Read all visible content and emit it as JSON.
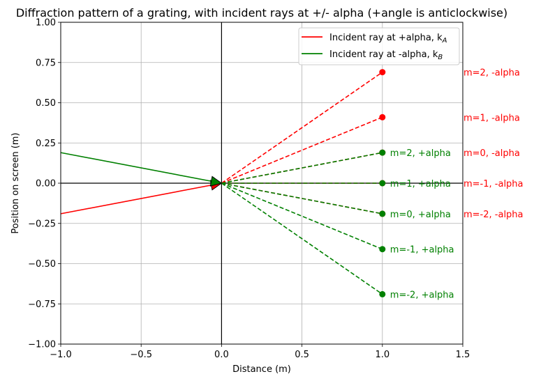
{
  "chart_data": {
    "type": "line",
    "title": "Diffraction pattern of a grating, with incident rays at +/- alpha (+angle is anticlockwise)",
    "xlabel": "Distance (m)",
    "ylabel": "Position on screen (m)",
    "xlim": [
      -1.0,
      1.5
    ],
    "ylim": [
      -1.0,
      1.0
    ],
    "xticks": [
      "−1.0",
      "−0.5",
      "0.0",
      "0.5",
      "1.0",
      "1.5"
    ],
    "xtick_values": [
      -1.0,
      -0.5,
      0.0,
      0.5,
      1.0,
      1.5
    ],
    "yticks": [
      "−1.00",
      "−0.75",
      "−0.50",
      "−0.25",
      "0.00",
      "0.25",
      "0.50",
      "0.75",
      "1.00"
    ],
    "ytick_values": [
      -1.0,
      -0.75,
      -0.5,
      -0.25,
      0.0,
      0.25,
      0.5,
      0.75,
      1.0
    ],
    "grid": true,
    "legend_position": "top-right",
    "colors": {
      "red": "#ff0000",
      "green": "#008000"
    },
    "incident": [
      {
        "name": "Incident ray at +alpha, k",
        "subscript": "A",
        "color": "#ff0000",
        "x": [
          -1.0,
          0.0
        ],
        "y": [
          -0.19,
          0.0
        ]
      },
      {
        "name": "Incident ray at -alpha, k",
        "subscript": "B",
        "color": "#008000",
        "x": [
          -1.0,
          0.0
        ],
        "y": [
          0.19,
          0.0
        ]
      }
    ],
    "diffracted": [
      {
        "color": "#ff0000",
        "x": 1.0,
        "y": 0.69,
        "label": "m=2, -alpha",
        "label_y": 0.69
      },
      {
        "color": "#ff0000",
        "x": 1.0,
        "y": 0.41,
        "label": "m=1, -alpha",
        "label_y": 0.41
      },
      {
        "color": "#ff0000",
        "x": 1.0,
        "y": 0.19,
        "label": "m=0, -alpha",
        "label_y": 0.19
      },
      {
        "color": "#ff0000",
        "x": 1.0,
        "y": 0.0,
        "label": "m=-1, -alpha",
        "label_y": 0.0
      },
      {
        "color": "#ff0000",
        "x": 1.0,
        "y": -0.19,
        "label": "m=-2, -alpha",
        "label_y": -0.19
      },
      {
        "color": "#008000",
        "x": 1.0,
        "y": 0.19,
        "label": "m=2, +alpha",
        "label_y": 0.19
      },
      {
        "color": "#008000",
        "x": 1.0,
        "y": 0.0,
        "label": "m=1, +alpha",
        "label_y": 0.0
      },
      {
        "color": "#008000",
        "x": 1.0,
        "y": -0.19,
        "label": "m=0, +alpha",
        "label_y": -0.19
      },
      {
        "color": "#008000",
        "x": 1.0,
        "y": -0.41,
        "label": "m=-1, +alpha",
        "label_y": -0.41
      },
      {
        "color": "#008000",
        "x": 1.0,
        "y": -0.69,
        "label": "m=-2, +alpha",
        "label_y": -0.69
      }
    ]
  }
}
